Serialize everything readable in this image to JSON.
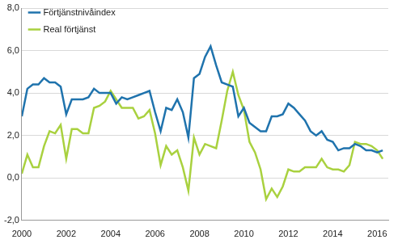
{
  "chart_data": {
    "type": "line",
    "x": [
      2000,
      2000.25,
      2000.5,
      2000.75,
      2001,
      2001.25,
      2001.5,
      2001.75,
      2002,
      2002.25,
      2002.5,
      2002.75,
      2003,
      2003.25,
      2003.5,
      2003.75,
      2004,
      2004.25,
      2004.5,
      2004.75,
      2005,
      2005.25,
      2005.5,
      2005.75,
      2006,
      2006.25,
      2006.5,
      2006.75,
      2007,
      2007.25,
      2007.5,
      2007.75,
      2008,
      2008.25,
      2008.5,
      2008.75,
      2009,
      2009.25,
      2009.5,
      2009.75,
      2010,
      2010.25,
      2010.5,
      2010.75,
      2011,
      2011.25,
      2011.5,
      2011.75,
      2012,
      2012.25,
      2012.5,
      2012.75,
      2013,
      2013.25,
      2013.5,
      2013.75,
      2014,
      2014.25,
      2014.5,
      2014.75,
      2015,
      2015.25,
      2015.5,
      2015.75,
      2016,
      2016.25
    ],
    "series": [
      {
        "name": "Förtjänstnivåindex",
        "color": "#1f73ad",
        "values": [
          2.9,
          4.2,
          4.4,
          4.4,
          4.7,
          4.5,
          4.5,
          4.3,
          3.0,
          3.7,
          3.7,
          3.7,
          3.8,
          4.2,
          4.0,
          4.0,
          4.0,
          3.5,
          3.8,
          3.7,
          3.8,
          3.9,
          4.0,
          4.1,
          3.1,
          2.2,
          3.3,
          3.2,
          3.7,
          3.1,
          1.9,
          4.7,
          4.9,
          5.7,
          6.2,
          5.3,
          4.5,
          4.4,
          4.3,
          2.9,
          3.3,
          2.6,
          2.4,
          2.2,
          2.2,
          2.9,
          2.9,
          3.0,
          3.5,
          3.3,
          3.0,
          2.7,
          2.2,
          2.0,
          2.2,
          1.8,
          1.7,
          1.3,
          1.4,
          1.4,
          1.6,
          1.5,
          1.3,
          1.3,
          1.2,
          1.3
        ]
      },
      {
        "name": "Real förtjänst",
        "color": "#a9d13f",
        "values": [
          0.2,
          1.1,
          0.5,
          0.5,
          1.5,
          2.2,
          2.1,
          2.5,
          0.9,
          2.3,
          2.3,
          2.1,
          2.1,
          3.3,
          3.4,
          3.6,
          4.1,
          3.7,
          3.3,
          3.3,
          3.3,
          2.8,
          2.9,
          3.2,
          2.1,
          0.6,
          1.5,
          1.1,
          1.3,
          0.5,
          -0.6,
          1.9,
          1.1,
          1.6,
          1.5,
          1.4,
          2.7,
          4.1,
          5.0,
          3.9,
          3.2,
          1.7,
          1.2,
          0.4,
          -1.0,
          -0.5,
          -0.9,
          -0.4,
          0.4,
          0.3,
          0.3,
          0.5,
          0.5,
          0.5,
          0.9,
          0.5,
          0.4,
          0.4,
          0.3,
          0.6,
          1.7,
          1.6,
          1.6,
          1.5,
          1.3,
          0.9
        ]
      }
    ],
    "xlim": [
      2000,
      2016.5
    ],
    "xticks": [
      2000,
      2002,
      2004,
      2006,
      2008,
      2010,
      2012,
      2014,
      2016
    ],
    "ylim": [
      -2,
      8
    ],
    "yticks": [
      {
        "value": -2,
        "label": "-2,0"
      },
      {
        "value": 0,
        "label": "0,0"
      },
      {
        "value": 2,
        "label": "2,0"
      },
      {
        "value": 4,
        "label": "4,0"
      },
      {
        "value": 6,
        "label": "6,0"
      },
      {
        "value": 8,
        "label": "8,0"
      }
    ],
    "grid": true,
    "legend": "upper left"
  }
}
